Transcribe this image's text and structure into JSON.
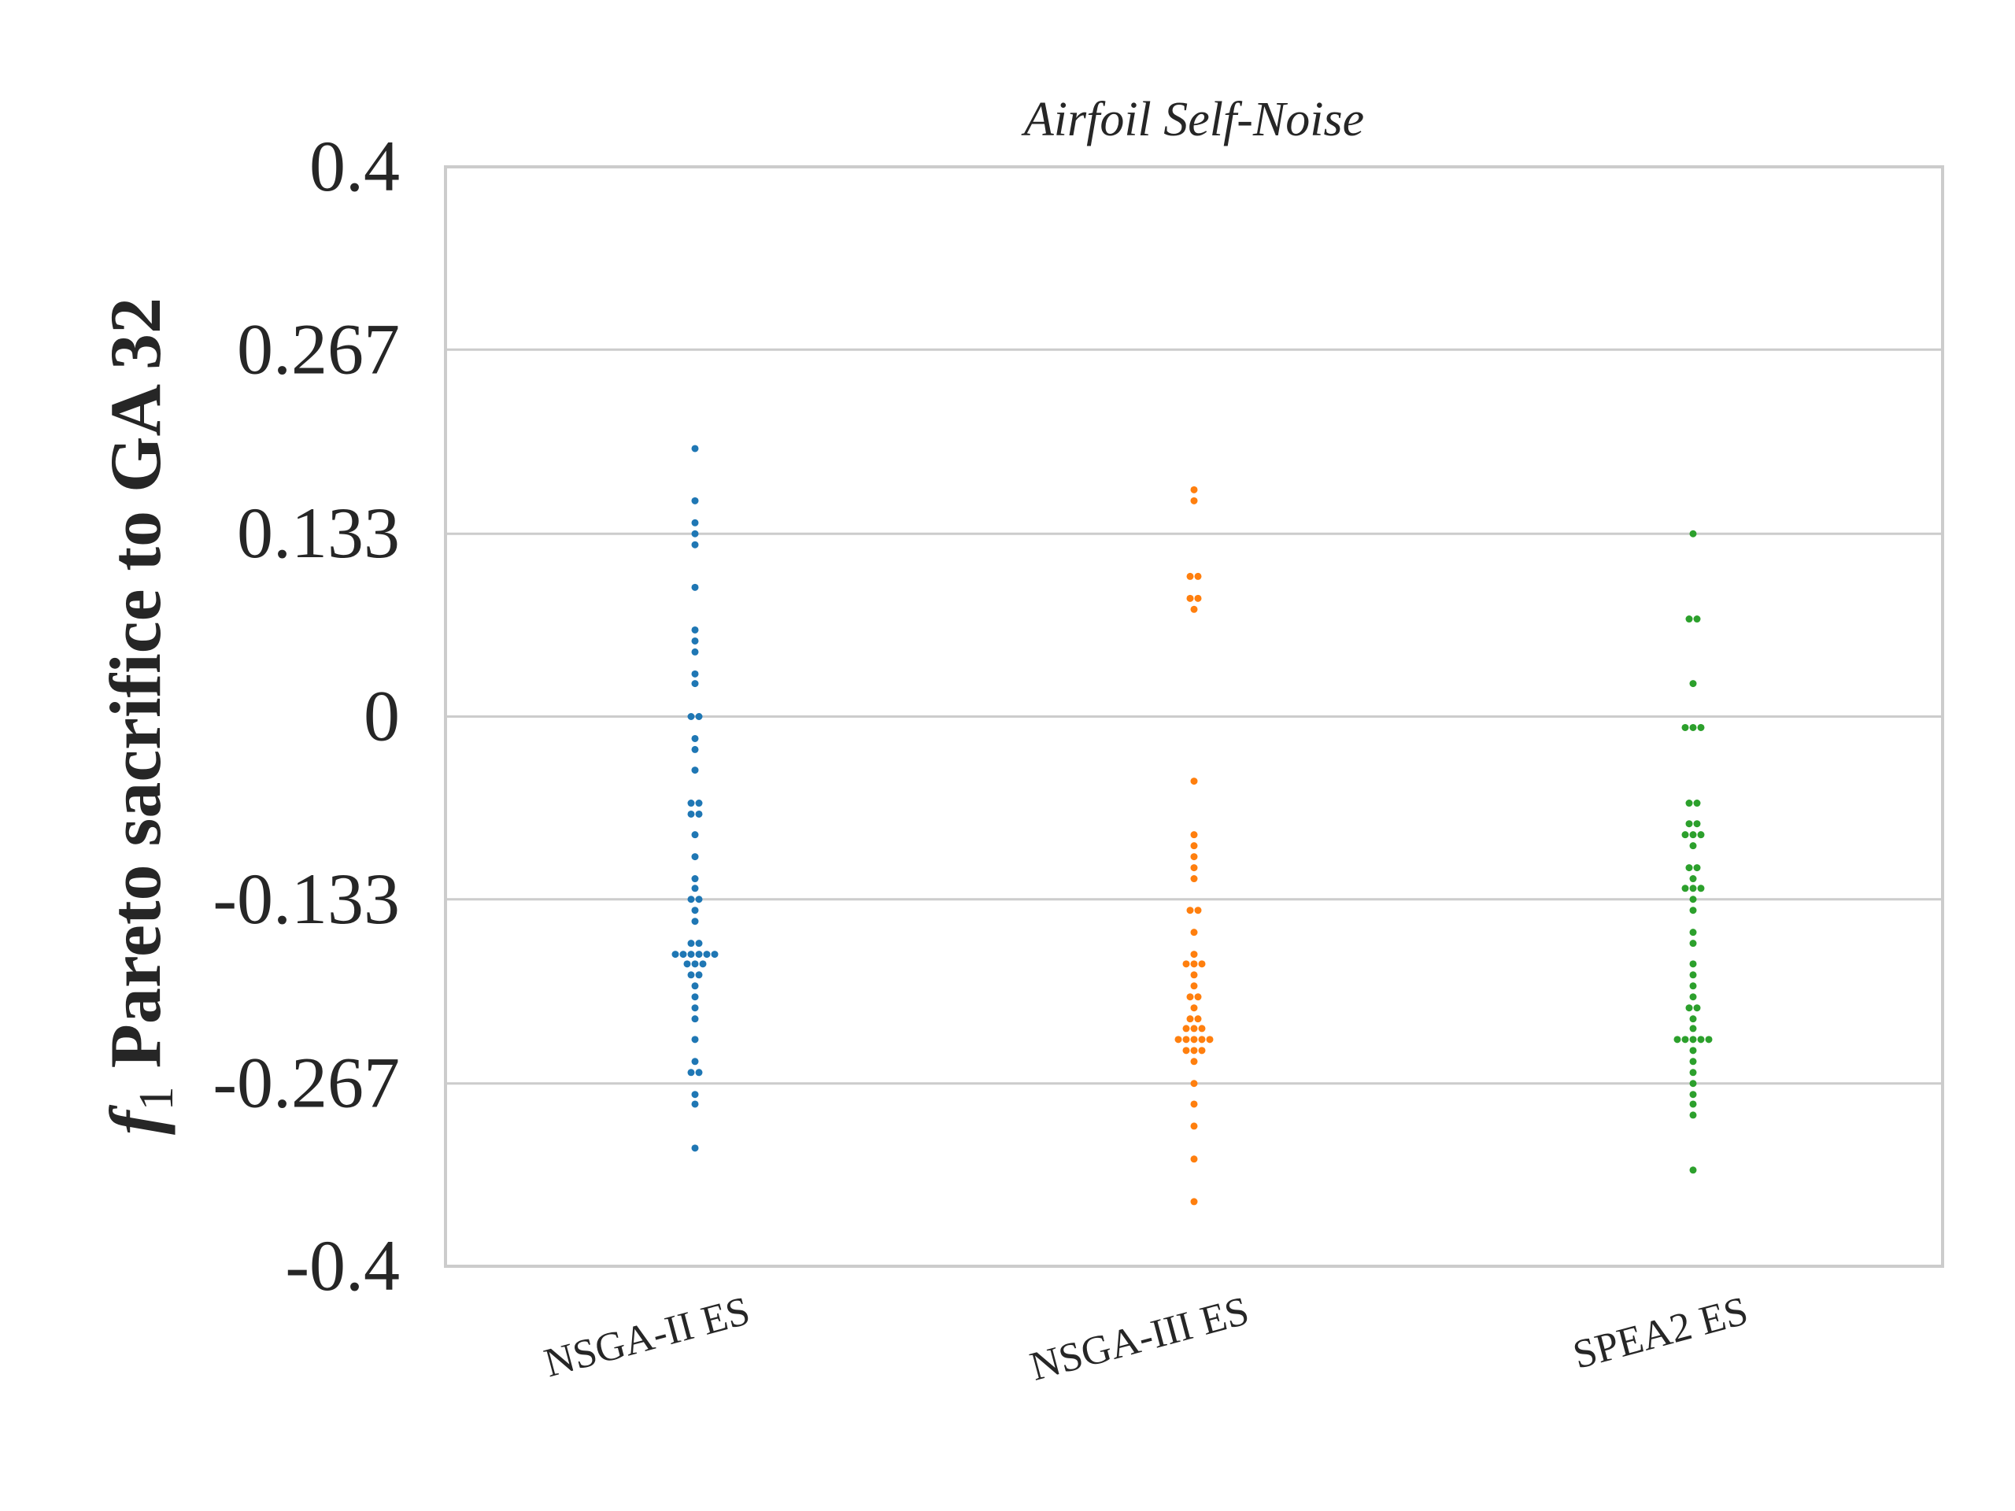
{
  "chart_data": {
    "type": "scatter",
    "subtype": "swarm",
    "title": "Airfoil Self-Noise",
    "ylabel": {
      "italic": "f",
      "subscript": "1",
      "text": " Pareto sacrifice to GA 32"
    },
    "xlabel": "",
    "ylim": [
      -0.4,
      0.4
    ],
    "yticks": [
      "0.4",
      "0.267",
      "0.133",
      "0",
      "-0.133",
      "-0.267",
      "-0.4"
    ],
    "ytick_values": [
      0.4,
      0.267,
      0.133,
      0,
      -0.133,
      -0.267,
      -0.4
    ],
    "grid": "horizontal",
    "categories": [
      "NSGA-II ES",
      "NSGA-III ES",
      "SPEA2 ES"
    ],
    "series": [
      {
        "category": "NSGA-II ES",
        "color": "#1f77b4",
        "values": [
          0.195,
          0.157,
          0.141,
          0.133,
          0.125,
          0.094,
          0.063,
          0.055,
          0.047,
          0.031,
          0.024,
          0.0,
          0.0,
          -0.016,
          -0.024,
          -0.039,
          -0.063,
          -0.063,
          -0.071,
          -0.071,
          -0.086,
          -0.102,
          -0.118,
          -0.125,
          -0.133,
          -0.133,
          -0.141,
          -0.149,
          -0.165,
          -0.165,
          -0.173,
          -0.173,
          -0.173,
          -0.173,
          -0.173,
          -0.173,
          -0.18,
          -0.18,
          -0.18,
          -0.188,
          -0.188,
          -0.196,
          -0.204,
          -0.212,
          -0.22,
          -0.235,
          -0.251,
          -0.259,
          -0.259,
          -0.275,
          -0.282,
          -0.314
        ]
      },
      {
        "category": "NSGA-III ES",
        "color": "#ff7f0e",
        "values": [
          0.165,
          0.157,
          0.102,
          0.102,
          0.086,
          0.086,
          0.078,
          -0.047,
          -0.086,
          -0.094,
          -0.102,
          -0.11,
          -0.118,
          -0.141,
          -0.141,
          -0.157,
          -0.173,
          -0.18,
          -0.18,
          -0.18,
          -0.188,
          -0.196,
          -0.204,
          -0.204,
          -0.212,
          -0.22,
          -0.22,
          -0.227,
          -0.227,
          -0.227,
          -0.235,
          -0.235,
          -0.235,
          -0.235,
          -0.235,
          -0.243,
          -0.243,
          -0.243,
          -0.251,
          -0.267,
          -0.282,
          -0.298,
          -0.322,
          -0.353
        ]
      },
      {
        "category": "SPEA2 ES",
        "color": "#2ca02c",
        "values": [
          0.133,
          0.071,
          0.071,
          0.024,
          -0.008,
          -0.008,
          -0.008,
          -0.063,
          -0.063,
          -0.078,
          -0.078,
          -0.086,
          -0.086,
          -0.086,
          -0.094,
          -0.11,
          -0.11,
          -0.118,
          -0.125,
          -0.125,
          -0.125,
          -0.133,
          -0.141,
          -0.157,
          -0.165,
          -0.18,
          -0.188,
          -0.196,
          -0.204,
          -0.212,
          -0.212,
          -0.22,
          -0.227,
          -0.235,
          -0.235,
          -0.235,
          -0.235,
          -0.235,
          -0.243,
          -0.251,
          -0.259,
          -0.267,
          -0.275,
          -0.282,
          -0.29,
          -0.33
        ]
      }
    ]
  }
}
